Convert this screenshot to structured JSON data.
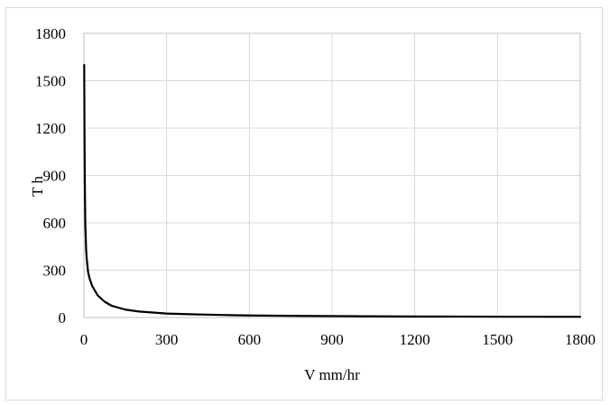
{
  "chart_data": {
    "type": "line",
    "title": "",
    "xlabel": "V mm/hr",
    "ylabel": "T h",
    "xlim": [
      0,
      1800
    ],
    "ylim": [
      0,
      1800
    ],
    "x_ticks": [
      0,
      300,
      600,
      900,
      1200,
      1500,
      1800
    ],
    "y_ticks": [
      0,
      300,
      600,
      900,
      1200,
      1500,
      1800
    ],
    "x_tick_labels": [
      "0",
      "300",
      "600",
      "900",
      "1200",
      "1500",
      "1800"
    ],
    "y_tick_labels": [
      "0",
      "300",
      "600",
      "900",
      "1200",
      "1500",
      "1800"
    ],
    "grid": true,
    "legend": "none",
    "series": [
      {
        "color": "#000000",
        "x": [
          1,
          2,
          3,
          5,
          8,
          10,
          15,
          20,
          30,
          40,
          50,
          75,
          100,
          150,
          200,
          300,
          400,
          500,
          600,
          800,
          1000,
          1200,
          1500,
          1800
        ],
        "y": [
          1600,
          1200,
          900,
          600,
          430,
          375,
          290,
          250,
          200,
          170,
          140,
          100,
          75,
          50,
          38,
          25,
          20,
          16,
          13,
          10,
          8,
          6.5,
          5.5,
          4.5
        ]
      }
    ]
  }
}
